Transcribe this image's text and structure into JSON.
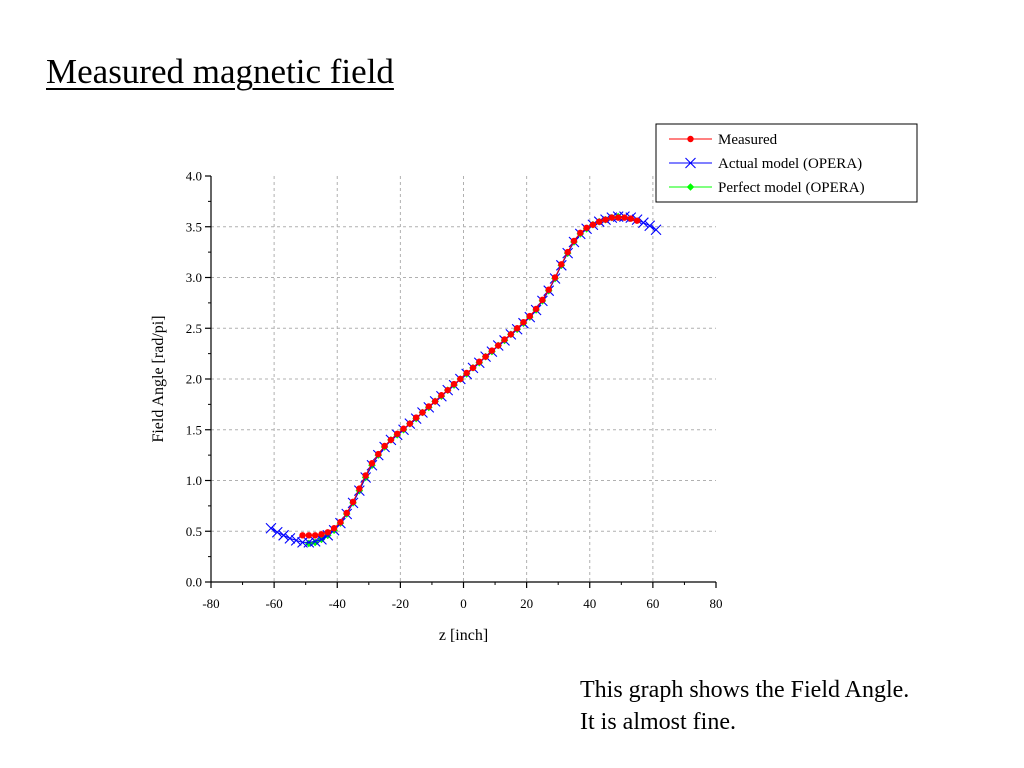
{
  "slide": {
    "title": "Measured magnetic field",
    "caption_lines": [
      "This graph shows the Field Angle.",
      "It is almost fine."
    ]
  },
  "chart_data": {
    "type": "line",
    "xlabel": "z [inch]",
    "ylabel": "Field Angle [rad/pi]",
    "xlim": [
      -80,
      80
    ],
    "ylim": [
      0.0,
      4.0
    ],
    "xticks": [
      -80,
      -60,
      -40,
      -20,
      0,
      20,
      40,
      60,
      80
    ],
    "yticks": [
      0.0,
      0.5,
      1.0,
      1.5,
      2.0,
      2.5,
      3.0,
      3.5,
      4.0
    ],
    "grid": true,
    "legend_position": "top-right",
    "series": [
      {
        "name": "Measured",
        "color": "#ff0000",
        "marker": "circle",
        "x": [
          -51,
          -49,
          -47,
          -45,
          -43,
          -41,
          -39,
          -37,
          -35,
          -33,
          -31,
          -29,
          -27,
          -25,
          -23,
          -21,
          -19,
          -17,
          -15,
          -13,
          -11,
          -9,
          -7,
          -5,
          -3,
          -1,
          1,
          3,
          5,
          7,
          9,
          11,
          13,
          15,
          17,
          19,
          21,
          23,
          25,
          27,
          29,
          31,
          33,
          35,
          37,
          39,
          41,
          43,
          45,
          47,
          49,
          51,
          53,
          55
        ],
        "y": [
          0.46,
          0.46,
          0.46,
          0.47,
          0.49,
          0.53,
          0.59,
          0.68,
          0.79,
          0.92,
          1.05,
          1.17,
          1.26,
          1.34,
          1.4,
          1.46,
          1.51,
          1.56,
          1.62,
          1.67,
          1.73,
          1.78,
          1.84,
          1.89,
          1.95,
          2.0,
          2.06,
          2.11,
          2.17,
          2.22,
          2.28,
          2.33,
          2.39,
          2.44,
          2.5,
          2.56,
          2.62,
          2.69,
          2.78,
          2.88,
          3.0,
          3.13,
          3.25,
          3.36,
          3.44,
          3.49,
          3.52,
          3.55,
          3.57,
          3.59,
          3.59,
          3.59,
          3.58,
          3.56
        ]
      },
      {
        "name": "Actual model (OPERA)",
        "color": "#0000ff",
        "marker": "x",
        "x": [
          -61,
          -59,
          -57,
          -55,
          -53,
          -51,
          -49,
          -47,
          -45,
          -43,
          -41,
          -39,
          -37,
          -35,
          -33,
          -31,
          -29,
          -27,
          -25,
          -23,
          -21,
          -19,
          -17,
          -15,
          -13,
          -11,
          -9,
          -7,
          -5,
          -3,
          -1,
          1,
          3,
          5,
          7,
          9,
          11,
          13,
          15,
          17,
          19,
          21,
          23,
          25,
          27,
          29,
          31,
          33,
          35,
          37,
          39,
          41,
          43,
          45,
          47,
          49,
          51,
          53,
          55,
          57,
          59,
          61
        ],
        "y": [
          0.53,
          0.49,
          0.46,
          0.43,
          0.41,
          0.39,
          0.39,
          0.4,
          0.42,
          0.46,
          0.51,
          0.58,
          0.67,
          0.78,
          0.9,
          1.03,
          1.15,
          1.25,
          1.33,
          1.4,
          1.45,
          1.5,
          1.56,
          1.61,
          1.67,
          1.72,
          1.78,
          1.83,
          1.89,
          1.94,
          2.0,
          2.05,
          2.11,
          2.16,
          2.22,
          2.27,
          2.33,
          2.38,
          2.44,
          2.49,
          2.55,
          2.61,
          2.68,
          2.77,
          2.87,
          2.99,
          3.12,
          3.24,
          3.35,
          3.43,
          3.48,
          3.52,
          3.55,
          3.57,
          3.59,
          3.6,
          3.6,
          3.59,
          3.57,
          3.54,
          3.51,
          3.47
        ]
      },
      {
        "name": "Perfect model (OPERA)",
        "color": "#00ff00",
        "marker": "diamond",
        "x": [
          -49,
          -47,
          -45,
          -43,
          -41,
          -39,
          -37,
          -35,
          -33,
          -31,
          -29,
          -27,
          -25,
          -23,
          -21,
          -19,
          -17,
          -15,
          -13,
          -11,
          -9,
          -7,
          -5,
          -3,
          -1,
          1,
          3,
          5,
          7,
          9,
          11,
          13,
          15,
          17,
          19,
          21,
          23,
          25,
          27,
          29,
          31,
          33,
          35,
          37,
          39,
          41,
          43,
          45,
          47,
          49
        ],
        "y": [
          0.38,
          0.39,
          0.42,
          0.46,
          0.51,
          0.58,
          0.67,
          0.78,
          0.9,
          1.03,
          1.15,
          1.25,
          1.33,
          1.4,
          1.45,
          1.5,
          1.56,
          1.61,
          1.67,
          1.72,
          1.78,
          1.83,
          1.89,
          1.94,
          2.0,
          2.05,
          2.11,
          2.16,
          2.22,
          2.27,
          2.33,
          2.38,
          2.44,
          2.49,
          2.55,
          2.61,
          2.68,
          2.77,
          2.87,
          2.99,
          3.12,
          3.24,
          3.35,
          3.43,
          3.48,
          3.52,
          3.55,
          3.57,
          3.59,
          3.6
        ]
      }
    ]
  }
}
